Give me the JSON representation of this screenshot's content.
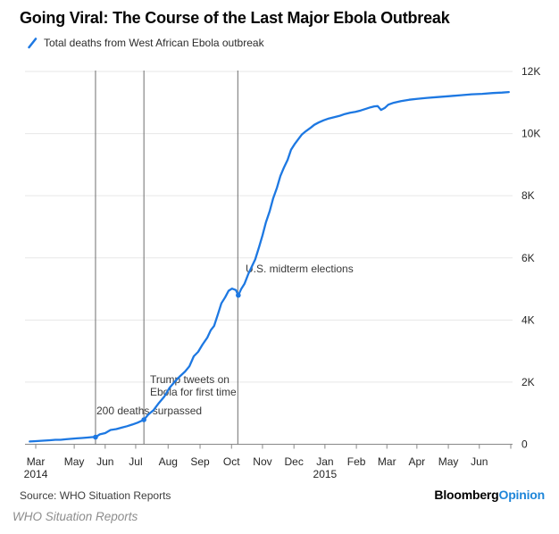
{
  "header": {
    "title": "Going Viral: The Course of the Last Major Ebola Outbreak"
  },
  "legend": {
    "icon": "line-series-slash-icon",
    "label": "Total deaths from West African Ebola outbreak"
  },
  "footer": {
    "source": "Source: WHO Situation Reports",
    "logo_black": "Bloomberg",
    "logo_blue": "Opinion"
  },
  "caption": "WHO Situation Reports",
  "colors": {
    "line": "#1d78e2",
    "logo_blue": "#1f86d9",
    "grid": "#e7e7e7",
    "axis": "#888888",
    "event_line": "#6f6f6f",
    "tick_text": "#262626",
    "annotation_text": "#3a3a3a"
  },
  "chart_data": {
    "type": "line",
    "title": "Going Viral: The Course of the Last Major Ebola Outbreak",
    "xlabel": "",
    "ylabel": "",
    "ylim": [
      0,
      12000
    ],
    "grid": "horizontal",
    "legend_position": "top-left",
    "yticks": [
      {
        "label": "12K",
        "v": 12000
      },
      {
        "label": "10K",
        "v": 10000
      },
      {
        "label": "8K",
        "v": 8000
      },
      {
        "label": "6K",
        "v": 6000
      },
      {
        "label": "4K",
        "v": 4000
      },
      {
        "label": "2K",
        "v": 2000
      },
      {
        "label": "0",
        "v": 0
      }
    ],
    "xticks": [
      {
        "label": "Mar",
        "year": "2014",
        "p": 1.85
      },
      {
        "label": "May",
        "p": 9.8
      },
      {
        "label": "Jun",
        "p": 16.2
      },
      {
        "label": "Jul",
        "p": 22.5
      },
      {
        "label": "Aug",
        "p": 29.2
      },
      {
        "label": "Sep",
        "p": 35.8
      },
      {
        "label": "Oct",
        "p": 42.3
      },
      {
        "label": "Nov",
        "p": 48.7
      },
      {
        "label": "Dec",
        "p": 55.2
      },
      {
        "label": "Jan",
        "year": "2015",
        "p": 61.6
      },
      {
        "label": "Feb",
        "p": 68.1
      },
      {
        "label": "Mar",
        "p": 74.4
      },
      {
        "label": "Apr",
        "p": 80.6
      },
      {
        "label": "May",
        "p": 87.1
      },
      {
        "label": "Jun",
        "p": 93.5
      },
      {
        "label": "",
        "p": 100
      }
    ],
    "event_lines": [
      {
        "p": 14.2,
        "name": "200-deaths-surpassed"
      },
      {
        "p": 24.2,
        "name": "trump-first-ebola-tweet"
      },
      {
        "p": 43.6,
        "name": "us-midterm-elections"
      }
    ],
    "annotations": [
      {
        "lines": [
          "200 deaths surpassed"
        ],
        "x": 108,
        "y": 464
      },
      {
        "lines": [
          "Trump tweets on",
          "Ebola for first time"
        ],
        "x": 168,
        "y": 429,
        "lh": 14
      },
      {
        "lines": [
          "U.S. midterm elections"
        ],
        "x": 275,
        "y": 305
      }
    ],
    "markers": [
      [
        14.2,
        230
      ],
      [
        24.2,
        790
      ],
      [
        43.7,
        4795
      ]
    ],
    "series": [
      {
        "name": "Total deaths from West African Ebola outbreak",
        "color": "#1d78e2",
        "points": [
          [
            0.6,
            90
          ],
          [
            1.9,
            100
          ],
          [
            3.3,
            115
          ],
          [
            4.8,
            130
          ],
          [
            5.9,
            145
          ],
          [
            7.0,
            145
          ],
          [
            8.1,
            160
          ],
          [
            9.2,
            175
          ],
          [
            10.3,
            190
          ],
          [
            11.4,
            200
          ],
          [
            12.5,
            215
          ],
          [
            13.5,
            230
          ],
          [
            14.2,
            230
          ],
          [
            15.1,
            320
          ],
          [
            16.2,
            360
          ],
          [
            17.3,
            460
          ],
          [
            18.5,
            490
          ],
          [
            19.6,
            535
          ],
          [
            20.7,
            580
          ],
          [
            21.8,
            635
          ],
          [
            22.9,
            695
          ],
          [
            24.2,
            790
          ],
          [
            25.1,
            955
          ],
          [
            26.2,
            1100
          ],
          [
            27.3,
            1330
          ],
          [
            28.4,
            1530
          ],
          [
            29.5,
            1820
          ],
          [
            30.6,
            2020
          ],
          [
            31.7,
            2195
          ],
          [
            32.7,
            2340
          ],
          [
            33.6,
            2510
          ],
          [
            34.5,
            2830
          ],
          [
            35.4,
            2975
          ],
          [
            36.3,
            3205
          ],
          [
            37.3,
            3435
          ],
          [
            38.0,
            3670
          ],
          [
            38.7,
            3810
          ],
          [
            39.5,
            4190
          ],
          [
            40.2,
            4535
          ],
          [
            41.0,
            4735
          ],
          [
            41.7,
            4940
          ],
          [
            42.4,
            5010
          ],
          [
            43.2,
            4965
          ],
          [
            43.7,
            4795
          ],
          [
            44.3,
            4995
          ],
          [
            45.0,
            5170
          ],
          [
            45.8,
            5490
          ],
          [
            46.5,
            5720
          ],
          [
            47.2,
            5950
          ],
          [
            48.0,
            6355
          ],
          [
            48.7,
            6730
          ],
          [
            49.4,
            7135
          ],
          [
            50.2,
            7510
          ],
          [
            50.9,
            7915
          ],
          [
            51.7,
            8260
          ],
          [
            52.4,
            8635
          ],
          [
            53.1,
            8895
          ],
          [
            53.9,
            9155
          ],
          [
            54.6,
            9475
          ],
          [
            55.4,
            9675
          ],
          [
            56.1,
            9820
          ],
          [
            56.8,
            9965
          ],
          [
            57.7,
            10080
          ],
          [
            58.7,
            10195
          ],
          [
            59.4,
            10280
          ],
          [
            60.3,
            10355
          ],
          [
            61.3,
            10425
          ],
          [
            62.4,
            10485
          ],
          [
            63.5,
            10525
          ],
          [
            64.6,
            10570
          ],
          [
            65.7,
            10630
          ],
          [
            66.8,
            10670
          ],
          [
            67.9,
            10700
          ],
          [
            69.0,
            10745
          ],
          [
            70.1,
            10800
          ],
          [
            71.0,
            10845
          ],
          [
            71.8,
            10875
          ],
          [
            72.5,
            10885
          ],
          [
            73.2,
            10760
          ],
          [
            74.0,
            10830
          ],
          [
            74.7,
            10930
          ],
          [
            75.8,
            10990
          ],
          [
            77.3,
            11045
          ],
          [
            79.0,
            11090
          ],
          [
            80.8,
            11120
          ],
          [
            82.7,
            11150
          ],
          [
            84.9,
            11175
          ],
          [
            87.3,
            11205
          ],
          [
            89.7,
            11235
          ],
          [
            91.9,
            11265
          ],
          [
            94.1,
            11280
          ],
          [
            96.3,
            11305
          ],
          [
            98.2,
            11320
          ],
          [
            99.6,
            11335
          ]
        ]
      }
    ]
  }
}
